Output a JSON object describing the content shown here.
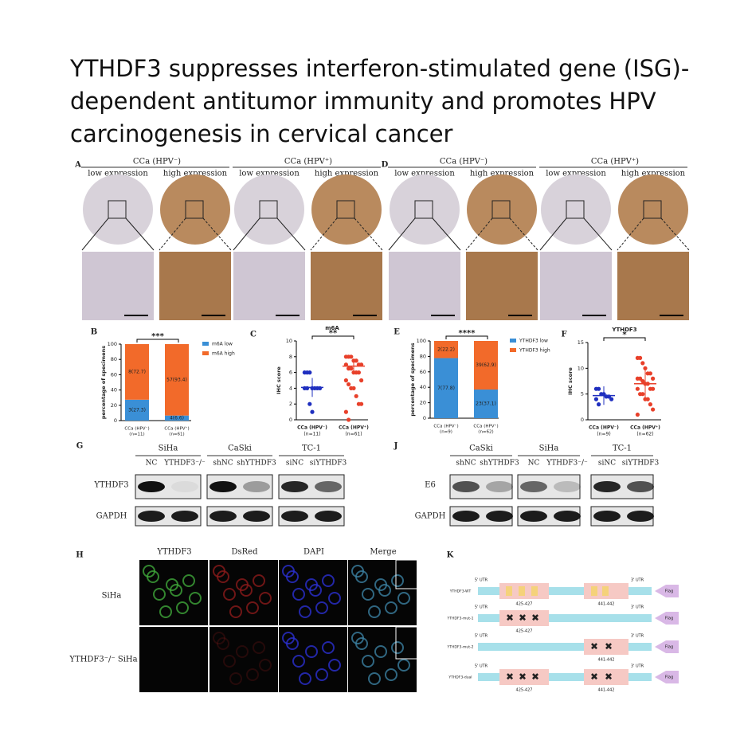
{
  "title": [
    "YTHDF3 suppresses interferon-stimulated gene (ISG)-",
    "dependent antitumor immunity and promotes HPV",
    "carcinogenesis in cervical cancer"
  ],
  "ihc": [
    {
      "label": "A",
      "groups": [
        {
          "name": "CCa (HPV⁻)",
          "columns": [
            "low expression",
            "high expression"
          ]
        },
        {
          "name": "CCa (HPV⁺)",
          "columns": [
            "low expression",
            "high expression"
          ]
        }
      ]
    },
    {
      "label": "D",
      "groups": [
        {
          "name": "CCa (HPV⁻)",
          "columns": [
            "low expression",
            "high expression"
          ]
        },
        {
          "name": "CCa (HPV⁺)",
          "columns": [
            "low expression",
            "high expression"
          ]
        }
      ]
    }
  ],
  "western": [
    {
      "label": "G",
      "groups": [
        {
          "name": "SiHa",
          "lanes": [
            "NC",
            "YTHDF3⁻/⁻"
          ]
        },
        {
          "name": "CaSki",
          "lanes": [
            "shNC",
            "shYTHDF3"
          ]
        },
        {
          "name": "TC-1",
          "lanes": [
            "siNC",
            "siYTHDF3"
          ]
        }
      ],
      "rows": [
        "YTHDF3",
        "GAPDH"
      ]
    },
    {
      "label": "J",
      "groups": [
        {
          "name": "CaSki",
          "lanes": [
            "shNC",
            "shYTHDF3"
          ]
        },
        {
          "name": "SiHa",
          "lanes": [
            "NC",
            "YTHDF3⁻/⁻"
          ]
        },
        {
          "name": "TC-1",
          "lanes": [
            "siNC",
            "siYTHDF3"
          ]
        }
      ],
      "rows": [
        "E6",
        "GAPDH"
      ]
    }
  ],
  "imaging": {
    "label": "H",
    "columns": [
      "YTHDF3",
      "DsRed",
      "DAPI",
      "Merge"
    ],
    "rows": [
      "SiHa",
      "YTHDF3⁻/⁻ SiHa"
    ]
  },
  "constructs": {
    "label": "K",
    "utr5": "5' UTR",
    "utr3": "3' UTR",
    "tag": "Flag",
    "site1": "425-427",
    "site2": "441-442",
    "names": [
      "YTHDF3-WT",
      "YTHDF3-mut-1",
      "YTHDF3-mut-2",
      "YTHDF3-dual"
    ]
  },
  "chart_data": [
    {
      "type": "stacked_bar",
      "label": "B",
      "y_label": "percentage of specimens",
      "significance": "***",
      "categories": [
        "CCa (HPV⁻)",
        "CCa (HPV⁺)"
      ],
      "category_notes": [
        "(n=11)",
        "(n=61)"
      ],
      "series": [
        {
          "name": "m6A low",
          "color": "#3a8fd6",
          "values": [
            27.3,
            6.6
          ],
          "value_labels": [
            "3(27.3)",
            "4(6.6)"
          ]
        },
        {
          "name": "m6A high",
          "color": "#f26a2a",
          "values": [
            72.7,
            93.4
          ],
          "value_labels": [
            "8(72.7)",
            "57(93.4)"
          ]
        }
      ],
      "ylim": [
        0,
        100
      ],
      "yticks": [
        0,
        20,
        40,
        60,
        80,
        100
      ]
    },
    {
      "type": "dot",
      "label": "C",
      "title": "m6A",
      "y_label": "IHC score",
      "significance": "**",
      "categories": [
        "CCa (HPV⁻)",
        "CCa (HPV⁺)"
      ],
      "category_notes": [
        "(n=11)",
        "(n=61)"
      ],
      "colors": [
        "#1f2fbf",
        "#e8402a"
      ],
      "points": [
        [
          6,
          6,
          6,
          4,
          4,
          4,
          4,
          4,
          4,
          2,
          1
        ],
        [
          8,
          8,
          8,
          7.5,
          7.5,
          7,
          7,
          7,
          6.5,
          6.5,
          6,
          6,
          6,
          5,
          5,
          4.5,
          4,
          4,
          3,
          2,
          2,
          1,
          0
        ]
      ],
      "means": [
        4.1,
        6.8
      ],
      "sd": [
        1.2,
        0.8
      ],
      "ylim": [
        0,
        10
      ],
      "yticks": [
        0,
        2,
        4,
        6,
        8,
        10
      ]
    },
    {
      "type": "stacked_bar",
      "label": "E",
      "y_label": "percentage of specimens",
      "significance": "****",
      "categories": [
        "CCa (HPV⁻)",
        "CCa (HPV⁺)"
      ],
      "category_notes": [
        "(n=9)",
        "(n=62)"
      ],
      "series": [
        {
          "name": "YTHDF3 low",
          "color": "#3a8fd6",
          "values": [
            77.8,
            37.1
          ],
          "value_labels": [
            "7(77.8)",
            "23(37.1)"
          ]
        },
        {
          "name": "YTHDF3 high",
          "color": "#f26a2a",
          "values": [
            22.2,
            62.9
          ],
          "value_labels": [
            "2(22.2)",
            "39(62.9)"
          ]
        }
      ],
      "ylim": [
        0,
        100
      ],
      "yticks": [
        0,
        20,
        40,
        60,
        80,
        100
      ]
    },
    {
      "type": "dot",
      "label": "F",
      "title": "YTHDF3",
      "y_label": "IHC score",
      "significance": "*",
      "categories": [
        "CCa (HPV⁻)",
        "CCa (HPV⁺)"
      ],
      "category_notes": [
        "(n=9)",
        "(n=62)"
      ],
      "colors": [
        "#1f2fbf",
        "#e8402a"
      ],
      "points": [
        [
          6,
          6,
          5,
          5,
          4.5,
          4.5,
          4,
          4,
          3
        ],
        [
          12,
          12,
          11,
          10,
          9,
          9,
          8,
          8,
          8,
          7.5,
          7,
          7,
          6,
          6,
          6,
          5,
          5,
          4,
          4,
          3,
          2,
          1
        ]
      ],
      "means": [
        4.7,
        7
      ],
      "sd": [
        1.8,
        2.8
      ],
      "ylim": [
        0,
        15
      ],
      "yticks": [
        0,
        5,
        10,
        15
      ]
    }
  ]
}
